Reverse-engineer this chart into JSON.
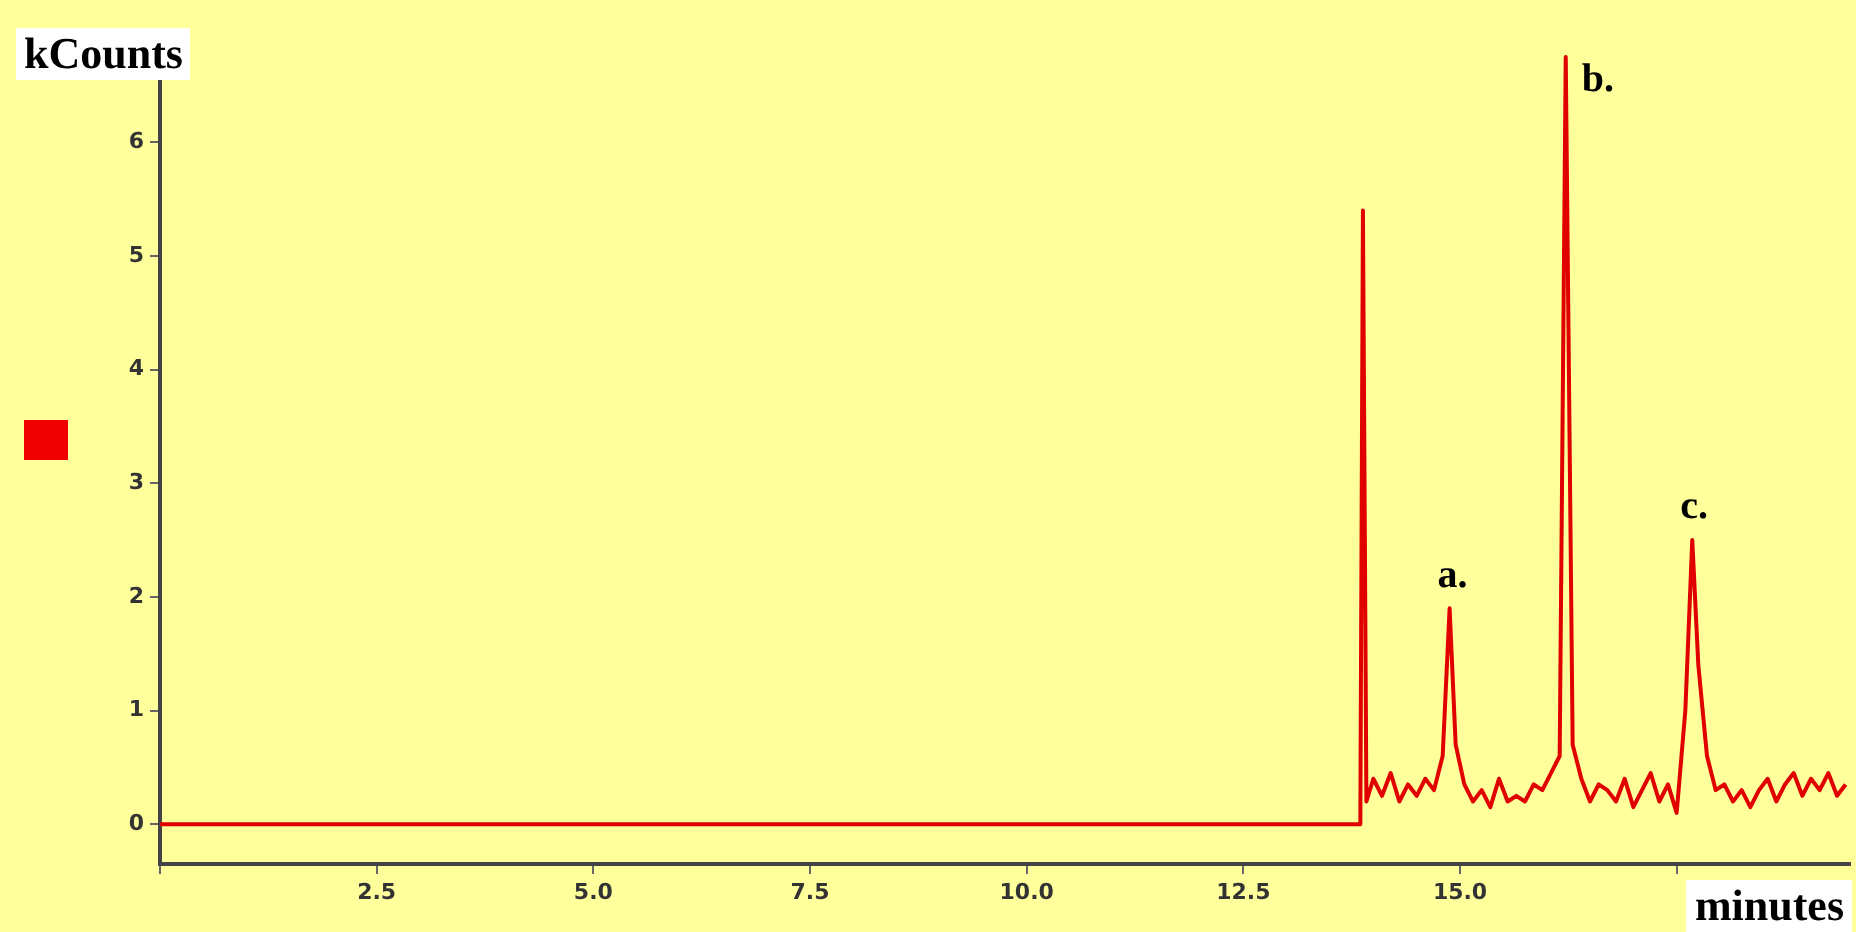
{
  "chart_data": {
    "type": "line",
    "xlabel": "minutes",
    "ylabel": "kCounts",
    "x": [
      0,
      13.85,
      13.88,
      13.92,
      14.0,
      14.1,
      14.2,
      14.3,
      14.4,
      14.5,
      14.6,
      14.7,
      14.8,
      14.88,
      14.95,
      15.05,
      15.15,
      15.25,
      15.35,
      15.45,
      15.55,
      15.65,
      15.75,
      15.85,
      15.95,
      16.05,
      16.15,
      16.22,
      16.3,
      16.4,
      16.5,
      16.6,
      16.7,
      16.8,
      16.9,
      17.0,
      17.1,
      17.2,
      17.3,
      17.4,
      17.5,
      17.6,
      17.68,
      17.75,
      17.85,
      17.95,
      18.05,
      18.15,
      18.25,
      18.35,
      18.45,
      18.55,
      18.65,
      18.75,
      18.85,
      18.95,
      19.05,
      19.15,
      19.25,
      19.35,
      19.45
    ],
    "series": [
      {
        "color": "#e00000",
        "values": [
          0,
          0,
          5.4,
          0.2,
          0.4,
          0.25,
          0.45,
          0.2,
          0.35,
          0.25,
          0.4,
          0.3,
          0.6,
          1.9,
          0.7,
          0.35,
          0.2,
          0.3,
          0.15,
          0.4,
          0.2,
          0.25,
          0.2,
          0.35,
          0.3,
          0.45,
          0.6,
          6.75,
          0.7,
          0.4,
          0.2,
          0.35,
          0.3,
          0.2,
          0.4,
          0.15,
          0.3,
          0.45,
          0.2,
          0.35,
          0.1,
          1.0,
          2.5,
          1.4,
          0.6,
          0.3,
          0.35,
          0.2,
          0.3,
          0.15,
          0.3,
          0.4,
          0.2,
          0.35,
          0.45,
          0.25,
          0.4,
          0.3,
          0.45,
          0.25,
          0.35
        ]
      }
    ],
    "xlim": [
      0,
      19.5
    ],
    "ylim": [
      -0.35,
      6.9
    ],
    "xticks": [
      {
        "value": 0,
        "label": null
      },
      {
        "value": 2.5,
        "label": "2.5"
      },
      {
        "value": 5,
        "label": "5.0"
      },
      {
        "value": 7.5,
        "label": "7.5"
      },
      {
        "value": 10,
        "label": "10.0"
      },
      {
        "value": 12.5,
        "label": "12.5"
      },
      {
        "value": 15,
        "label": "15.0"
      },
      {
        "value": 17.5,
        "label": null
      }
    ],
    "yticks": [
      0,
      1,
      2,
      3,
      4,
      5,
      6
    ],
    "annotations": [
      {
        "text": "a.",
        "x": 14.88,
        "y": 1.9
      },
      {
        "text": "b.",
        "x": 16.22,
        "y": 6.75
      },
      {
        "text": "c.",
        "x": 17.68,
        "y": 2.5
      }
    ],
    "grid": false,
    "legend": false,
    "marker": "none",
    "line_style": "solid"
  }
}
